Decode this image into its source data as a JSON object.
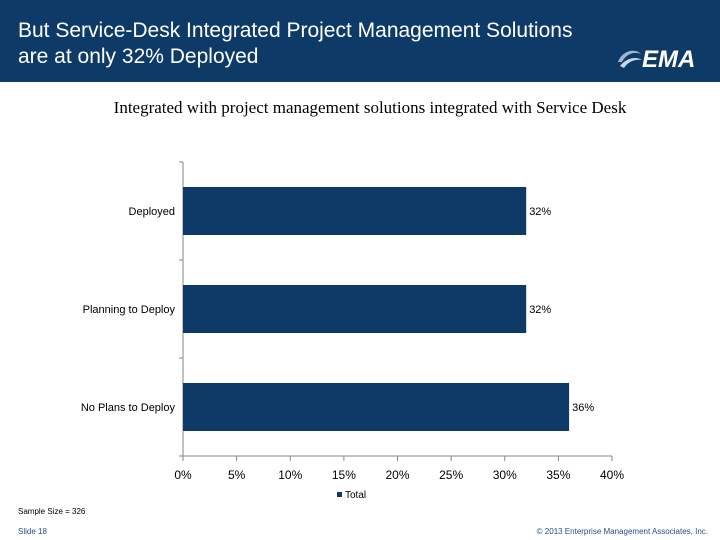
{
  "slide": {
    "title": "But Service-Desk Integrated Project Management Solutions are at only 32% Deployed",
    "logo_text": "EMA",
    "subtitle": "Integrated with project management solutions integrated with Service Desk",
    "sample_size": "Sample Size = 326",
    "slide_number": "Slide 18",
    "copyright": "© 2013 Enterprise Management Associates, Inc."
  },
  "colors": {
    "header_bg": "#0e3a68",
    "bar": "#0e3a68"
  },
  "chart_data": {
    "type": "bar",
    "orientation": "horizontal",
    "categories": [
      "Deployed",
      "Planning to Deploy",
      "No Plans to Deploy"
    ],
    "series": [
      {
        "name": "Total",
        "values": [
          32,
          32,
          36
        ]
      }
    ],
    "data_labels": [
      "32%",
      "32%",
      "36%"
    ],
    "xlim": [
      0,
      40
    ],
    "x_ticks": [
      0,
      5,
      10,
      15,
      20,
      25,
      30,
      35,
      40
    ],
    "x_tick_labels": [
      "0%",
      "5%",
      "10%",
      "15%",
      "20%",
      "25%",
      "30%",
      "35%",
      "40%"
    ],
    "legend": "bottom",
    "grid": false
  }
}
